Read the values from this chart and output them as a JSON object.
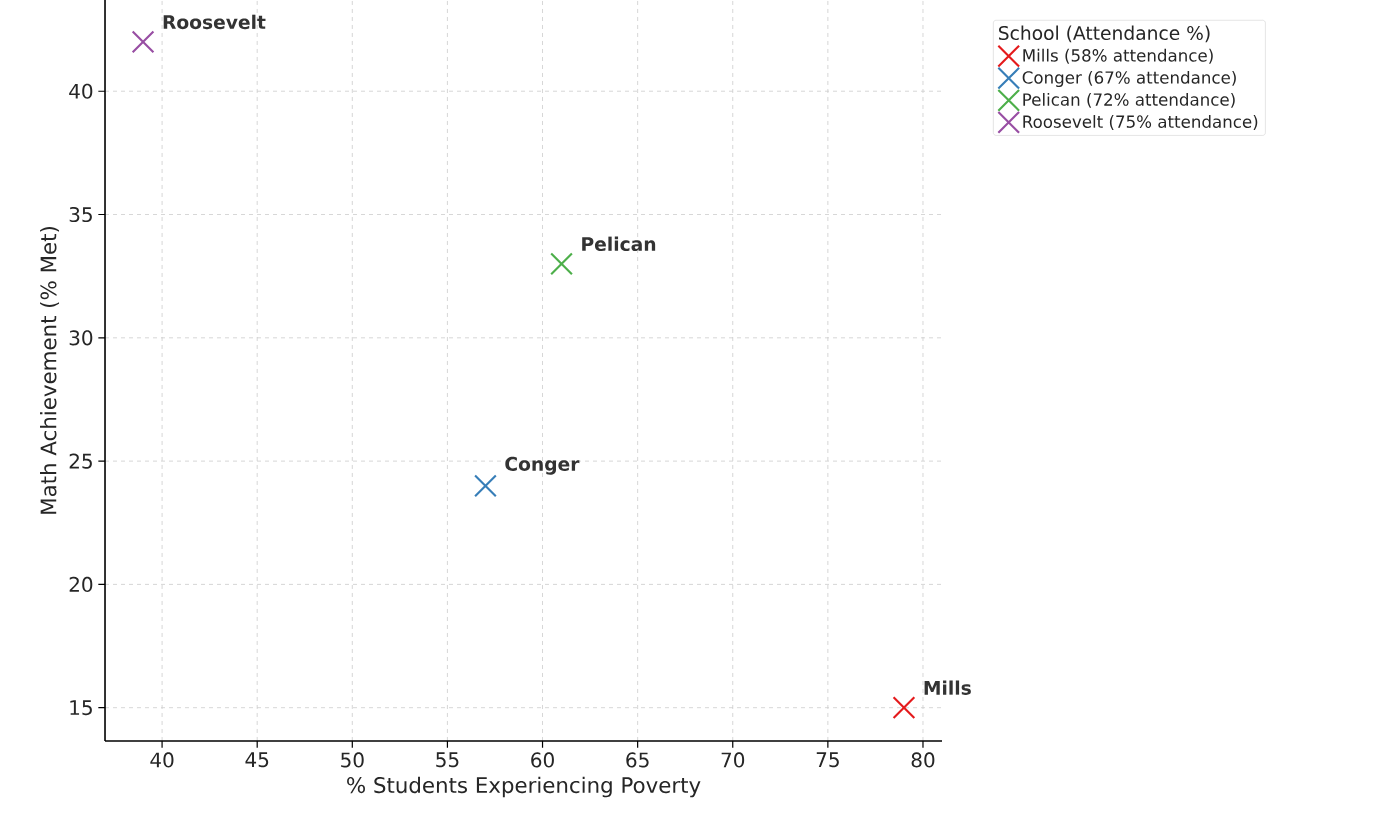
{
  "chart_data": {
    "type": "scatter",
    "xlabel": "% Students Experiencing Poverty",
    "ylabel": "Math Achievement (% Met)",
    "legend_title": "School (Attendance %)",
    "series": [
      {
        "name": "Mills (58% attendance)",
        "color": "#e41a1c",
        "x": [
          79
        ],
        "values": [
          15
        ]
      },
      {
        "name": "Conger (67% attendance)",
        "color": "#377eb8",
        "x": [
          57
        ],
        "values": [
          24
        ]
      },
      {
        "name": "Pelican (72% attendance)",
        "color": "#4daf4a",
        "x": [
          61
        ],
        "values": [
          33
        ]
      },
      {
        "name": "Roosevelt (75% attendance)",
        "color": "#984ea3",
        "x": [
          39
        ],
        "values": [
          42
        ]
      }
    ],
    "annotations": [
      {
        "text": "Mills",
        "x": 79,
        "y": 15
      },
      {
        "text": "Conger",
        "x": 57,
        "y": 24
      },
      {
        "text": "Pelican",
        "x": 61,
        "y": 33
      },
      {
        "text": "Roosevelt",
        "x": 39,
        "y": 42
      }
    ],
    "xlim": [
      37,
      81
    ],
    "ylim": [
      13.65,
      43.7
    ],
    "xticks": [
      40,
      45,
      50,
      55,
      60,
      65,
      70,
      75,
      80
    ],
    "yticks": [
      15,
      20,
      25,
      30,
      35,
      40
    ],
    "grid": true,
    "legend": "top right",
    "marker": "cross"
  }
}
